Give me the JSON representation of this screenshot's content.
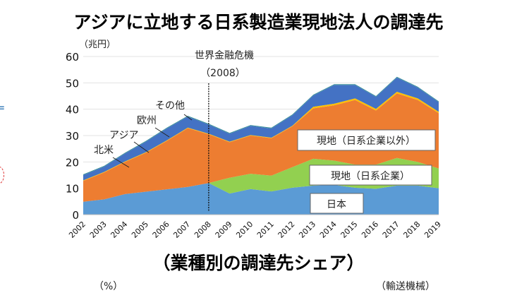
{
  "title": "アジアに立地する日系製造業現地法人の調達先",
  "subtitle": "（業種別の調達先シェア）",
  "bottom_left_unit": "（%）",
  "bottom_right_label": "（輸送機械）",
  "chart_data": {
    "type": "area",
    "stacked": true,
    "ylabel": "（兆円）",
    "ylim": [
      0,
      60
    ],
    "yticks": [
      0,
      10,
      20,
      30,
      40,
      50,
      60
    ],
    "grid": true,
    "categories": [
      "2002",
      "2003",
      "2004",
      "2005",
      "2006",
      "2007",
      "2008",
      "2009",
      "2010",
      "2011",
      "2012",
      "2013",
      "2014",
      "2015",
      "2016",
      "2017",
      "2018",
      "2019"
    ],
    "series": [
      {
        "name": "日本",
        "color": "#5b9bd5",
        "values": [
          4.9,
          5.8,
          7.8,
          8.7,
          9.6,
          10.5,
          12,
          8,
          9.7,
          8.8,
          10.2,
          11,
          11.3,
          10.2,
          9.8,
          11,
          11,
          10
        ]
      },
      {
        "name": "現地（日系企業）",
        "color": "#92d050",
        "values": [
          0,
          0,
          0,
          0,
          0,
          0,
          0,
          6,
          5.8,
          6,
          7.8,
          10.2,
          9.2,
          8.8,
          9.2,
          10.5,
          9,
          7.5
        ]
      },
      {
        "name": "現地（日系企業以外）",
        "color": "#ed7d31",
        "values": [
          7.9,
          10.2,
          12.2,
          14.8,
          18.4,
          22.3,
          18.5,
          13.5,
          14.5,
          14.2,
          15.5,
          19.1,
          21,
          24.5,
          20.5,
          24.5,
          23.5,
          21
        ]
      },
      {
        "color": "#ffc000",
        "values": [
          0.2,
          0.2,
          0.2,
          0.2,
          0.2,
          0.2,
          0.2,
          0.2,
          0.2,
          0.2,
          0.2,
          0.6,
          0.6,
          0.6,
          0.6,
          0.6,
          0.6,
          0.5
        ]
      },
      {
        "color": "#4472c4",
        "values": [
          2.0,
          2.0,
          3.0,
          4.0,
          4.5,
          4.2,
          3.5,
          3.0,
          3.5,
          3.5,
          4.0,
          4.3,
          7.1,
          5.1,
          4.6,
          5.4,
          4.1,
          3.7
        ]
      },
      {
        "color": "#3a8f9a",
        "values": [
          0.3,
          0.3,
          0.3,
          0.3,
          0.3,
          0.3,
          0.3,
          0.3,
          0.3,
          0.3,
          0.3,
          0.3,
          0.3,
          0.3,
          0.3,
          0.3,
          0.3,
          0.3
        ]
      }
    ],
    "annotations": {
      "crisis_line": {
        "x": "2008",
        "label": "世界金融危機",
        "sublabel": "（2008）"
      },
      "region_labels": [
        "その他",
        "欧州",
        "アジア",
        "北米"
      ]
    }
  }
}
